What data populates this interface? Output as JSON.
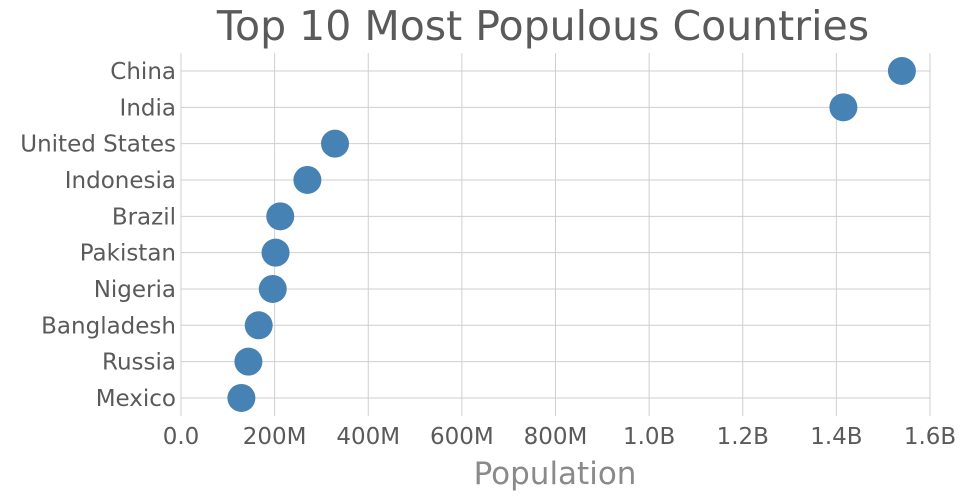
{
  "colors": {
    "marker": "#4682b4",
    "grid": "#cfcfcf",
    "text": "#5a5a5a",
    "axis_title": "#8a8a8a",
    "background": "#ffffff"
  },
  "chart_data": {
    "type": "scatter",
    "title": "Top 10 Most Populous Countries",
    "xlabel": "Population",
    "ylabel": "",
    "xlim": [
      0,
      1600000000
    ],
    "grid": true,
    "x_ticks": [
      0,
      200000000,
      400000000,
      600000000,
      800000000,
      1000000000,
      1200000000,
      1400000000,
      1600000000
    ],
    "x_tick_labels": [
      "0.0",
      "200M",
      "400M",
      "600M",
      "800M",
      "1.0B",
      "1.2B",
      "1.4B",
      "1.6B"
    ],
    "categories": [
      "China",
      "India",
      "United States",
      "Indonesia",
      "Brazil",
      "Pakistan",
      "Nigeria",
      "Bangladesh",
      "Russia",
      "Mexico"
    ],
    "values": [
      1540000000,
      1415000000,
      329000000,
      270000000,
      212000000,
      202000000,
      196000000,
      166000000,
      144000000,
      129000000
    ]
  }
}
